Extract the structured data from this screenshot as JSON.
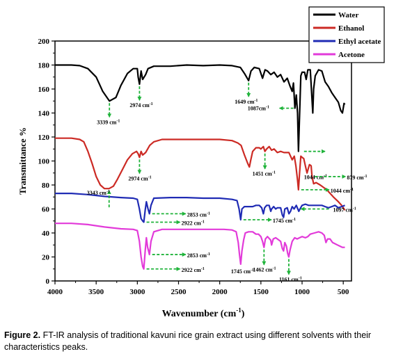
{
  "chart_data": {
    "type": "line",
    "xlabel": "Wavenumber (cm",
    "xlabel_sup": "-1",
    "xlabel_close": ")",
    "ylabel": "Transmittance %",
    "xlim": [
      4000,
      400
    ],
    "ylim": [
      0,
      200
    ],
    "x_reversed": true,
    "xticks": [
      4000,
      3500,
      3000,
      2500,
      2000,
      1500,
      1000,
      500
    ],
    "yticks": [
      0,
      20,
      40,
      60,
      80,
      100,
      120,
      140,
      160,
      180,
      200
    ],
    "legend_position": "top-right",
    "series": [
      {
        "name": "Water",
        "color": "#000000",
        "points": [
          [
            4000,
            180
          ],
          [
            3800,
            180
          ],
          [
            3700,
            179.5
          ],
          [
            3600,
            177
          ],
          [
            3500,
            170
          ],
          [
            3420,
            158
          ],
          [
            3339,
            150
          ],
          [
            3260,
            153
          ],
          [
            3200,
            163
          ],
          [
            3120,
            173
          ],
          [
            3050,
            177
          ],
          [
            3000,
            177
          ],
          [
            2990,
            170
          ],
          [
            2974,
            164
          ],
          [
            2955,
            175
          ],
          [
            2935,
            168
          ],
          [
            2900,
            172
          ],
          [
            2870,
            177
          ],
          [
            2800,
            179
          ],
          [
            2600,
            179
          ],
          [
            2400,
            180
          ],
          [
            2200,
            179.5
          ],
          [
            2000,
            180
          ],
          [
            1850,
            179.5
          ],
          [
            1750,
            178
          ],
          [
            1700,
            173
          ],
          [
            1649,
            167
          ],
          [
            1620,
            175
          ],
          [
            1580,
            178
          ],
          [
            1520,
            177
          ],
          [
            1480,
            169
          ],
          [
            1450,
            176
          ],
          [
            1420,
            175
          ],
          [
            1380,
            172
          ],
          [
            1340,
            174
          ],
          [
            1300,
            170
          ],
          [
            1260,
            172
          ],
          [
            1220,
            166
          ],
          [
            1180,
            169
          ],
          [
            1150,
            163
          ],
          [
            1120,
            158
          ],
          [
            1105,
            165
          ],
          [
            1087,
            144
          ],
          [
            1070,
            155
          ],
          [
            1055,
            140
          ],
          [
            1044,
            108
          ],
          [
            1030,
            138
          ],
          [
            1015,
            171
          ],
          [
            1000,
            174
          ],
          [
            970,
            174
          ],
          [
            950,
            168
          ],
          [
            930,
            176
          ],
          [
            900,
            176
          ],
          [
            880,
            152
          ],
          [
            870,
            140
          ],
          [
            860,
            160
          ],
          [
            840,
            171
          ],
          [
            800,
            176
          ],
          [
            760,
            175
          ],
          [
            720,
            166
          ],
          [
            680,
            162
          ],
          [
            640,
            157
          ],
          [
            600,
            153
          ],
          [
            560,
            149
          ],
          [
            530,
            142
          ],
          [
            510,
            140
          ],
          [
            490,
            148
          ],
          [
            480,
            147
          ]
        ]
      },
      {
        "name": "Ethanol",
        "color": "#cc2a24",
        "points": [
          [
            4000,
            119
          ],
          [
            3800,
            119
          ],
          [
            3700,
            118
          ],
          [
            3650,
            116
          ],
          [
            3600,
            108
          ],
          [
            3550,
            98
          ],
          [
            3500,
            87
          ],
          [
            3450,
            80
          ],
          [
            3400,
            77
          ],
          [
            3343,
            77
          ],
          [
            3290,
            79
          ],
          [
            3240,
            85
          ],
          [
            3180,
            93
          ],
          [
            3120,
            101
          ],
          [
            3060,
            106
          ],
          [
            3010,
            108
          ],
          [
            2990,
            106
          ],
          [
            2974,
            103
          ],
          [
            2955,
            108
          ],
          [
            2935,
            105
          ],
          [
            2900,
            107
          ],
          [
            2850,
            113
          ],
          [
            2800,
            116
          ],
          [
            2700,
            118
          ],
          [
            2500,
            118
          ],
          [
            2200,
            118
          ],
          [
            2000,
            118
          ],
          [
            1850,
            117
          ],
          [
            1780,
            115
          ],
          [
            1740,
            113
          ],
          [
            1700,
            105
          ],
          [
            1660,
            98
          ],
          [
            1640,
            95
          ],
          [
            1625,
            100
          ],
          [
            1600,
            108
          ],
          [
            1560,
            111
          ],
          [
            1520,
            111
          ],
          [
            1500,
            110
          ],
          [
            1470,
            112
          ],
          [
            1451,
            108
          ],
          [
            1430,
            110
          ],
          [
            1400,
            112
          ],
          [
            1370,
            109
          ],
          [
            1340,
            110
          ],
          [
            1300,
            107
          ],
          [
            1260,
            108
          ],
          [
            1220,
            107
          ],
          [
            1160,
            107
          ],
          [
            1120,
            101
          ],
          [
            1095,
            104
          ],
          [
            1075,
            96
          ],
          [
            1055,
            84
          ],
          [
            1044,
            76
          ],
          [
            1030,
            90
          ],
          [
            1015,
            104
          ],
          [
            1000,
            103
          ],
          [
            980,
            102
          ],
          [
            960,
            96
          ],
          [
            940,
            90
          ],
          [
            910,
            97
          ],
          [
            890,
            96
          ],
          [
            879,
            87
          ],
          [
            860,
            81
          ],
          [
            830,
            82
          ],
          [
            780,
            80
          ],
          [
            700,
            76
          ],
          [
            620,
            70
          ],
          [
            560,
            66
          ],
          [
            520,
            63
          ],
          [
            480,
            59
          ]
        ]
      },
      {
        "name": "Ethyl acetate",
        "color": "#1f2bb4",
        "points": [
          [
            4000,
            73
          ],
          [
            3800,
            73
          ],
          [
            3600,
            72
          ],
          [
            3400,
            70.5
          ],
          [
            3200,
            69.5
          ],
          [
            3050,
            69
          ],
          [
            3000,
            68
          ],
          [
            2975,
            60
          ],
          [
            2955,
            52
          ],
          [
            2935,
            50
          ],
          [
            2922,
            49
          ],
          [
            2905,
            59
          ],
          [
            2890,
            66
          ],
          [
            2870,
            60
          ],
          [
            2853,
            56
          ],
          [
            2835,
            63
          ],
          [
            2800,
            69
          ],
          [
            2600,
            69.5
          ],
          [
            2400,
            69.5
          ],
          [
            2200,
            69
          ],
          [
            2000,
            69
          ],
          [
            1850,
            68
          ],
          [
            1790,
            67
          ],
          [
            1765,
            60
          ],
          [
            1750,
            53
          ],
          [
            1745,
            51
          ],
          [
            1730,
            60
          ],
          [
            1700,
            62
          ],
          [
            1650,
            62
          ],
          [
            1600,
            62
          ],
          [
            1560,
            63
          ],
          [
            1520,
            63
          ],
          [
            1490,
            61
          ],
          [
            1470,
            56
          ],
          [
            1455,
            61
          ],
          [
            1430,
            63
          ],
          [
            1400,
            63
          ],
          [
            1380,
            58
          ],
          [
            1370,
            60
          ],
          [
            1345,
            62
          ],
          [
            1320,
            60
          ],
          [
            1300,
            61
          ],
          [
            1260,
            61
          ],
          [
            1240,
            55
          ],
          [
            1225,
            53
          ],
          [
            1210,
            60
          ],
          [
            1180,
            61
          ],
          [
            1160,
            56
          ],
          [
            1140,
            58
          ],
          [
            1120,
            62
          ],
          [
            1097,
            60
          ],
          [
            1070,
            63
          ],
          [
            1040,
            58
          ],
          [
            1025,
            60
          ],
          [
            1000,
            63
          ],
          [
            960,
            64
          ],
          [
            920,
            63
          ],
          [
            880,
            63
          ],
          [
            840,
            63
          ],
          [
            800,
            63
          ],
          [
            760,
            63
          ],
          [
            720,
            62
          ],
          [
            680,
            61
          ],
          [
            640,
            62
          ],
          [
            600,
            63
          ],
          [
            560,
            61
          ],
          [
            520,
            62
          ],
          [
            480,
            63
          ]
        ]
      },
      {
        "name": "Acetone",
        "color": "#e23ad9",
        "points": [
          [
            4000,
            48
          ],
          [
            3800,
            48
          ],
          [
            3600,
            47
          ],
          [
            3400,
            45
          ],
          [
            3200,
            43.5
          ],
          [
            3050,
            43
          ],
          [
            3000,
            42
          ],
          [
            2975,
            33
          ],
          [
            2955,
            20
          ],
          [
            2935,
            12
          ],
          [
            2922,
            10
          ],
          [
            2905,
            25
          ],
          [
            2890,
            36
          ],
          [
            2875,
            28
          ],
          [
            2853,
            22
          ],
          [
            2835,
            33
          ],
          [
            2800,
            41
          ],
          [
            2700,
            43
          ],
          [
            2500,
            43
          ],
          [
            2300,
            43
          ],
          [
            2100,
            43
          ],
          [
            1950,
            43
          ],
          [
            1850,
            42.5
          ],
          [
            1800,
            41
          ],
          [
            1775,
            32
          ],
          [
            1760,
            22
          ],
          [
            1745,
            14
          ],
          [
            1730,
            25
          ],
          [
            1710,
            34
          ],
          [
            1690,
            40
          ],
          [
            1650,
            41
          ],
          [
            1600,
            41
          ],
          [
            1560,
            39
          ],
          [
            1530,
            39
          ],
          [
            1500,
            37
          ],
          [
            1480,
            33
          ],
          [
            1462,
            28
          ],
          [
            1445,
            35
          ],
          [
            1420,
            37
          ],
          [
            1380,
            34
          ],
          [
            1370,
            30
          ],
          [
            1350,
            35
          ],
          [
            1320,
            36
          ],
          [
            1300,
            35
          ],
          [
            1260,
            33
          ],
          [
            1240,
            27
          ],
          [
            1225,
            25
          ],
          [
            1210,
            32
          ],
          [
            1190,
            29
          ],
          [
            1175,
            23
          ],
          [
            1161,
            20
          ],
          [
            1145,
            26
          ],
          [
            1120,
            33
          ],
          [
            1090,
            36
          ],
          [
            1060,
            35
          ],
          [
            1030,
            36
          ],
          [
            1000,
            37
          ],
          [
            960,
            36
          ],
          [
            930,
            37
          ],
          [
            900,
            39
          ],
          [
            850,
            40
          ],
          [
            800,
            41
          ],
          [
            760,
            40
          ],
          [
            730,
            38
          ],
          [
            710,
            32
          ],
          [
            690,
            35
          ],
          [
            660,
            35
          ],
          [
            630,
            32
          ],
          [
            600,
            31
          ],
          [
            570,
            30
          ],
          [
            540,
            29
          ],
          [
            510,
            28
          ],
          [
            480,
            28
          ]
        ]
      }
    ],
    "annotations": [
      {
        "label": "3339 cm",
        "x": 3339,
        "y": 150
      },
      {
        "label": "2974 cm",
        "x": 2974,
        "y": 164
      },
      {
        "label": "1649 cm",
        "x": 1649,
        "y": 167
      },
      {
        "label": "1087cm",
        "x": 1087,
        "y": 144
      },
      {
        "label": "1044 cm",
        "x": 1044,
        "y": 108
      },
      {
        "label": "3343 cm",
        "x": 3343,
        "y": 77
      },
      {
        "label": "2974 cm",
        "x": 2974,
        "y": 103
      },
      {
        "label": "1451 cm",
        "x": 1451,
        "y": 108
      },
      {
        "label": "879 cm",
        "x": 879,
        "y": 87
      },
      {
        "label": "1044 cm",
        "x": 1044,
        "y": 76
      },
      {
        "label": "2853 cm",
        "x": 2853,
        "y": 56
      },
      {
        "label": "2922 cm",
        "x": 2922,
        "y": 49
      },
      {
        "label": "1745 cm",
        "x": 1745,
        "y": 51
      },
      {
        "label": "1097 cm",
        "x": 1097,
        "y": 60
      },
      {
        "label": "2853 cm",
        "x": 2853,
        "y": 22
      },
      {
        "label": "2922 cm",
        "x": 2922,
        "y": 10
      },
      {
        "label": "1745 cm",
        "x": 1745,
        "y": 14
      },
      {
        "label": "1462 cm",
        "x": 1462,
        "y": 28
      },
      {
        "label": "1161 cm",
        "x": 1161,
        "y": 20
      }
    ],
    "annotation_superscript": "-1",
    "annotation_arrow_color": "#1fb33a"
  },
  "caption": {
    "label": "Figure 2.",
    "text": "FT-IR analysis of traditional kavuni rice grain extract using different solvents with their characteristics peaks."
  }
}
